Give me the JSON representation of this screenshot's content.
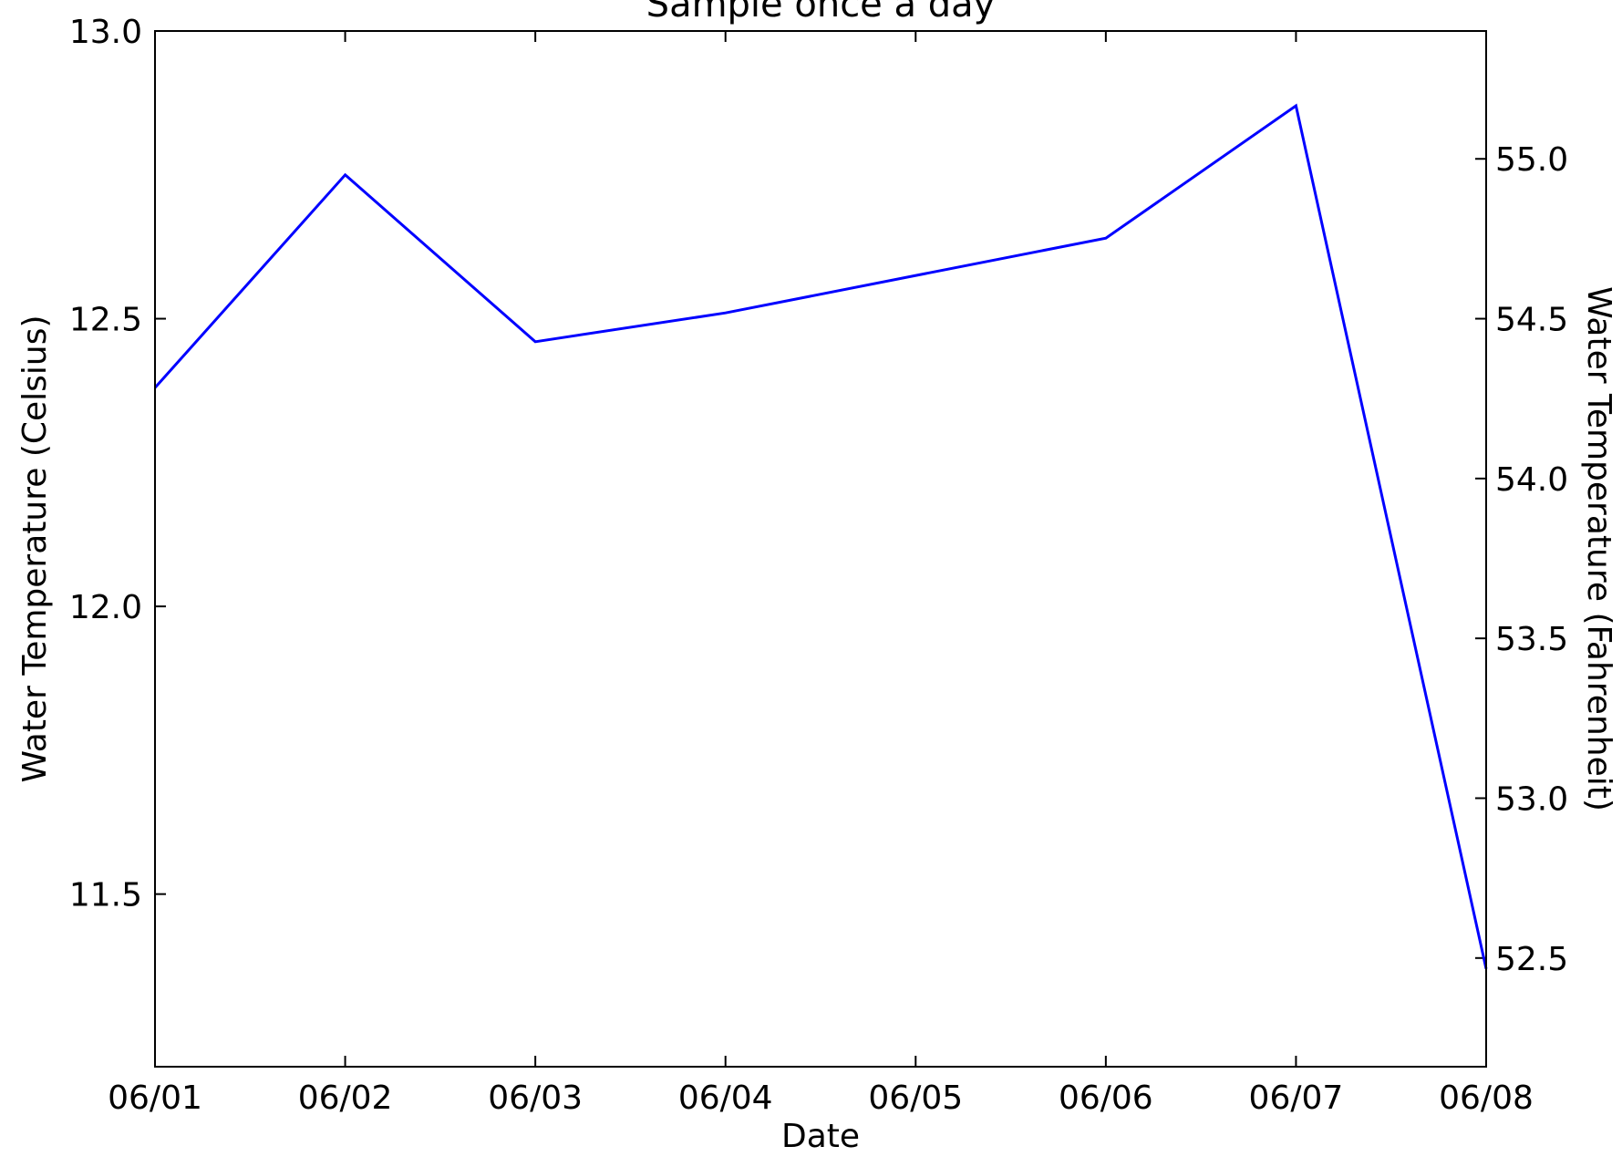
{
  "chart_data": {
    "type": "line",
    "title": "Sample once a day",
    "xlabel": "Date",
    "ylabel": "Water Temperature (Celsius)",
    "y2label": "Water Temperature (Fahrenheit)",
    "x": [
      "06/01",
      "06/02",
      "06/03",
      "06/04",
      "06/05",
      "06/06",
      "06/07",
      "06/08"
    ],
    "series": [
      {
        "x": [
          "06/01",
          "06/02",
          "06/03",
          "06/04",
          "06/06",
          "06/07",
          "06/08"
        ],
        "values": [
          12.38,
          12.75,
          12.46,
          12.51,
          12.64,
          12.87,
          11.37
        ]
      }
    ],
    "xticks": [
      "06/01",
      "06/02",
      "06/03",
      "06/04",
      "06/05",
      "06/06",
      "06/07",
      "06/08"
    ],
    "yticks": [
      "11.5",
      "12.0",
      "12.5",
      "13.0"
    ],
    "y2ticks": [
      "52.5",
      "53.0",
      "53.5",
      "54.0",
      "54.5",
      "55.0"
    ],
    "xlim": [
      "06/01",
      "06/08"
    ],
    "ylim": [
      11.2,
      13.0
    ],
    "y2lim": [
      52.16,
      55.4
    ],
    "grid": false,
    "line_color": "#0000ff"
  }
}
